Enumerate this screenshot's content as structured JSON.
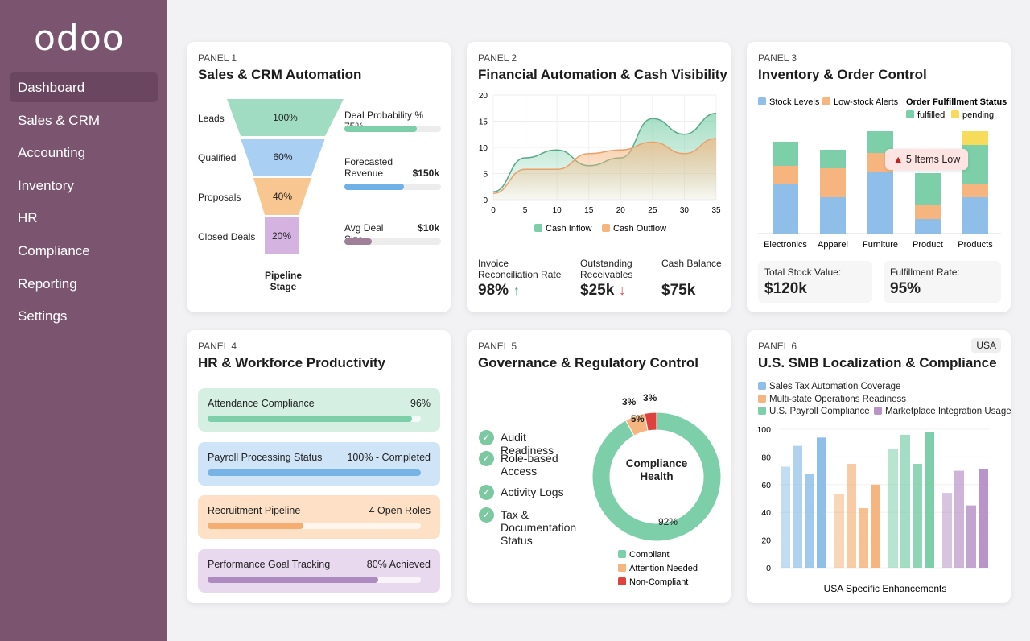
{
  "app": {
    "logo": "odoo"
  },
  "sidebar": {
    "items": [
      {
        "label": "Dashboard",
        "active": true
      },
      {
        "label": "Sales & CRM"
      },
      {
        "label": "Accounting"
      },
      {
        "label": "Inventory"
      },
      {
        "label": "HR"
      },
      {
        "label": "Compliance"
      },
      {
        "label": "Reporting"
      },
      {
        "label": "Settings"
      }
    ]
  },
  "colors": {
    "sidebar": "#7b5570",
    "green": "#7ccfa9",
    "blue": "#8fbfe8",
    "orange": "#f6b57e",
    "purple": "#c7a6d6",
    "red": "#e0413d"
  },
  "panel1": {
    "label": "PANEL 1",
    "title": "Sales & CRM Automation",
    "funnel": [
      {
        "stage": "Leads",
        "value": "100%"
      },
      {
        "stage": "Qualified",
        "value": "60%"
      },
      {
        "stage": "Proposals",
        "value": "40%"
      },
      {
        "stage": "Closed Deals",
        "value": "20%"
      }
    ],
    "funnel_caption": "Pipeline Stage",
    "metrics": [
      {
        "label": "Deal Probability % 75%",
        "value": "",
        "progress": 75
      },
      {
        "label": "Forecasted Revenue",
        "value": "$150k",
        "progress": 62
      },
      {
        "label": "Avg Deal Size",
        "value": "$10k",
        "progress": 28
      }
    ]
  },
  "panel2": {
    "label": "PANEL 2",
    "title": "Financial Automation & Cash Visibility",
    "kpis": [
      {
        "label": "Invoice Reconciliation Rate",
        "value": "98%",
        "trend": "↑"
      },
      {
        "label": "Outstanding Receivables",
        "value": "$25k",
        "trend": "↓"
      },
      {
        "label": "Cash Balance",
        "value": "$75k",
        "trend": ""
      }
    ]
  },
  "panel3": {
    "label": "PANEL 3",
    "title": "Inventory & Order Control",
    "alert": "5 Items Low",
    "kpis": [
      {
        "label": "Total Stock Value:",
        "value": "$120k"
      },
      {
        "label": "Fulfillment Rate:",
        "value": "95%"
      }
    ]
  },
  "panel4": {
    "label": "PANEL 4",
    "title": "HR & Workforce Productivity",
    "items": [
      {
        "label": "Attendance Compliance",
        "value": "96%",
        "progress": 96
      },
      {
        "label": "Payroll Processing Status",
        "value": "100% - Completed",
        "progress": 100
      },
      {
        "label": "Recruitment Pipeline",
        "value": "4 Open Roles",
        "progress": 45
      },
      {
        "label": "Performance Goal Tracking",
        "value": "80% Achieved",
        "progress": 80
      }
    ]
  },
  "panel5": {
    "label": "PANEL 5",
    "title": "Governance & Regulatory Control",
    "checks": [
      "Audit Readiness",
      "Role-based Access",
      "Activity Logs",
      "Tax & Documentation Status"
    ],
    "donut_center": "Compliance Health",
    "donut_labels": {
      "compliant": "92%",
      "attention": "5%",
      "noncompliant_a": "3%",
      "noncompliant_b": "3%"
    }
  },
  "panel6": {
    "label": "PANEL 6",
    "title": "U.S. SMB Localization & Compliance",
    "badge": "USA"
  },
  "chart_data": [
    {
      "type": "area",
      "x": [
        0,
        5,
        10,
        15,
        20,
        25,
        30,
        35
      ],
      "xlim": [
        0,
        35
      ],
      "ylim": [
        0,
        20
      ],
      "yticks": [
        0,
        5,
        10,
        15,
        20
      ],
      "grid": true,
      "legend": "bottom",
      "series": [
        {
          "name": "Cash Inflow",
          "color": "#7ccfa9",
          "values": [
            1.5,
            8,
            9.5,
            6.5,
            8,
            15.5,
            12.5,
            16.5
          ]
        },
        {
          "name": "Cash Outflow",
          "color": "#f6b57e",
          "values": [
            1.2,
            5.8,
            5.8,
            8.8,
            9.5,
            11,
            8.8,
            11.7
          ]
        }
      ]
    },
    {
      "type": "bar",
      "stacked": true,
      "categories": [
        "Electronics",
        "Apparel",
        "Furniture",
        "Product",
        "Products"
      ],
      "legend": "top",
      "legend_title": "Order Fulfillment Status",
      "series": [
        {
          "name": "Stock Levels",
          "color": "#8fbfe8",
          "values": [
            61,
            45,
            76,
            18,
            45
          ]
        },
        {
          "name": "Low-stock Alerts",
          "color": "#f6b57e",
          "values": [
            23,
            36,
            24,
            18,
            17
          ]
        },
        {
          "name": "fulfilled",
          "color": "#7ccfa9",
          "values": [
            30,
            23,
            27,
            39,
            48
          ]
        },
        {
          "name": "pending",
          "color": "#f7dc5c",
          "values": [
            0,
            0,
            0,
            0,
            17
          ]
        }
      ]
    },
    {
      "type": "pie",
      "donut": true,
      "legend": "bottom",
      "slices": [
        {
          "name": "Compliant",
          "value": 92,
          "color": "#7ccfa9"
        },
        {
          "name": "Attention Needed",
          "value": 5,
          "color": "#f6b57e"
        },
        {
          "name": "Non-Compliant",
          "value": 3,
          "color": "#e0413d"
        }
      ]
    },
    {
      "type": "bar",
      "xlabel": "USA Specific Enhancements",
      "ylim": [
        0,
        100
      ],
      "yticks": [
        0,
        20,
        40,
        60,
        80,
        100
      ],
      "legend": "top",
      "series": [
        {
          "name": "Sales Tax Automation Coverage",
          "color": "#8fbfe8",
          "values": [
            73,
            88,
            68,
            94
          ]
        },
        {
          "name": "Multi-state Operations Readiness",
          "color": "#f6b57e",
          "values": [
            53,
            75,
            43,
            60
          ]
        },
        {
          "name": "U.S. Payroll Compliance",
          "color": "#7ccfa9",
          "values": [
            86,
            96,
            75,
            98
          ]
        },
        {
          "name": "Marketplace Integration Usage",
          "color": "#b894c8",
          "values": [
            54,
            70,
            45,
            71
          ]
        }
      ]
    }
  ]
}
